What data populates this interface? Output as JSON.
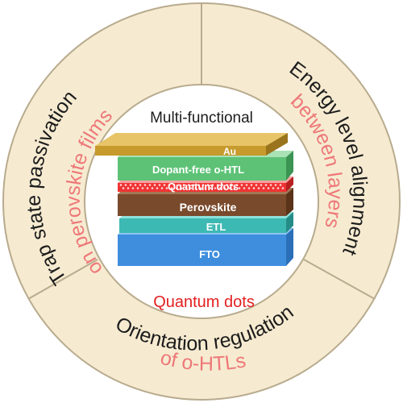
{
  "ring": {
    "left": {
      "title": "Trap state passivation",
      "subtitle": "on perovskite films"
    },
    "right": {
      "title": "Energy level alignment",
      "subtitle": "between layers"
    },
    "bottom": {
      "title": "Orientation regulation",
      "subtitle": "of o-HTLs"
    }
  },
  "center": {
    "heading": "Multi-functional",
    "footer": "Quantum dots"
  },
  "stack": {
    "layers": [
      {
        "label": "Au"
      },
      {
        "label": "Dopant-free o-HTL"
      },
      {
        "label": "Quantum dots"
      },
      {
        "label": "Perovskite"
      },
      {
        "label": "ETL"
      },
      {
        "label": "FTO"
      }
    ]
  },
  "colors": {
    "ring_fill": "#f6ebd1",
    "ring_border": "#b8ab8e",
    "title_text": "#1c1c1c",
    "subtitle_text": "#ee7878",
    "quantum_text": "#e42020",
    "au": "#c69a2c",
    "htl": "#5dc276",
    "qd": "#ef3333",
    "perovskite": "#7a4a2c",
    "etl": "#3db9b3",
    "fto": "#3f8ede"
  }
}
